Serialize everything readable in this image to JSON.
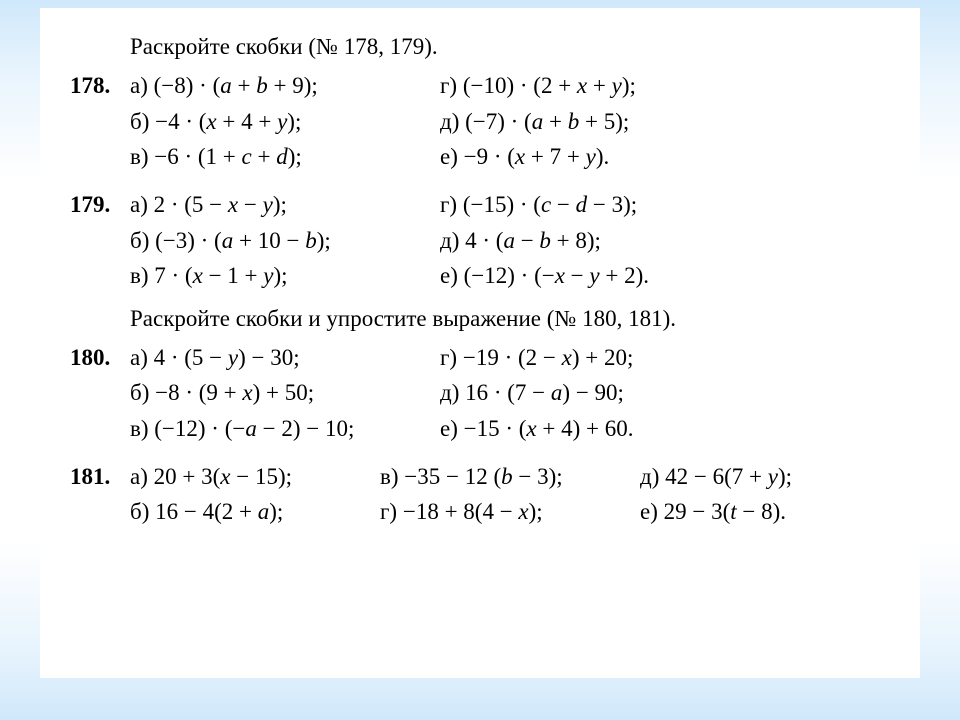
{
  "instruction1": "Раскройте скобки (№ 178, 179).",
  "instruction2": "Раскройте скобки и упростите выражение (№ 180, 181).",
  "ex178": {
    "num": "178.",
    "a": "а) (−8) · (<i>a</i> + <i>b</i> + 9);",
    "b": "б) −4 · (<i>x</i> + 4 + <i>y</i>);",
    "v": "в) −6 · (1 + <i>c</i> + <i>d</i>);",
    "g": "г) (−10) · (2 + <i>x</i> + <i>y</i>);",
    "d": "д) (−7) · (<i>a</i> + <i>b</i> + 5);",
    "e": "е) −9 · (<i>x</i> + 7 + <i>y</i>)."
  },
  "ex179": {
    "num": "179.",
    "a": "а) 2 · (5 − <i>x</i> − <i>y</i>);",
    "b": "б) (−3) · (<i>a</i> + 10 − <i>b</i>);",
    "v": "в) 7 · (<i>x</i> − 1 + <i>y</i>);",
    "g": "г) (−15) · (<i>c</i> − <i>d</i> − 3);",
    "d": "д) 4 · (<i>a</i> − <i>b</i> + 8);",
    "e": "е) (−12) · (−<i>x</i> − <i>y</i> + 2)."
  },
  "ex180": {
    "num": "180.",
    "a": "а) 4 · (5 − <i>y</i>) − 30;",
    "b": "б) −8 · (9 + <i>x</i>) + 50;",
    "v": "в) (−12) · (−<i>a</i> − 2) − 10;",
    "g": "г) −19 · (2 − <i>x</i>) + 20;",
    "d": "д) 16 · (7 − <i>a</i>) − 90;",
    "e": "е) −15 · (<i>x</i> + 4) + 60."
  },
  "ex181": {
    "num": "181.",
    "a": "а) 20 + 3(<i>x</i> − 15);",
    "b": "б) 16 − 4(2 + <i>a</i>);",
    "v": "в) −35 − 12 (<i>b</i> − 3);",
    "g": "г) −18 + 8(4 − <i>x</i>);",
    "d": "д) 42 − 6(7 + <i>y</i>);",
    "e": "е) 29 − 3(<i>t</i> − 8)."
  }
}
